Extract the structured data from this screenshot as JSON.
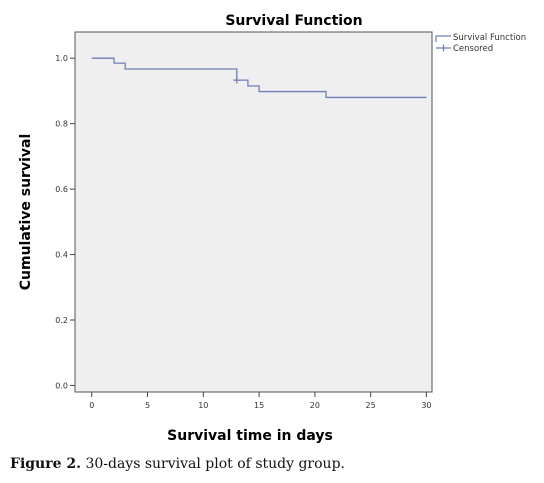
{
  "chart_data": {
    "type": "line",
    "title": "Survival Function",
    "xlabel": "Survival time in days",
    "ylabel": "Cumulative survival",
    "xlim": [
      -1.5,
      30.5
    ],
    "ylim": [
      -0.02,
      1.08
    ],
    "x_ticks": [
      0,
      5,
      10,
      15,
      20,
      25,
      30
    ],
    "y_ticks": [
      0.0,
      0.2,
      0.4,
      0.6,
      0.8,
      1.0
    ],
    "grid": false,
    "legend_position": "top-right-outside",
    "colors": {
      "line": "#6f7fb5",
      "plot_bg": "#efefef",
      "axis": "#444444"
    },
    "series": [
      {
        "name": "Survival Function",
        "step": true,
        "points": [
          [
            0,
            1.0
          ],
          [
            2,
            0.985
          ],
          [
            3,
            0.967
          ],
          [
            13,
            0.933
          ],
          [
            14,
            0.915
          ],
          [
            15,
            0.898
          ],
          [
            21,
            0.88
          ],
          [
            30,
            0.88
          ]
        ]
      },
      {
        "name": "Censored",
        "marker": "plus",
        "points": [
          [
            13,
            0.933
          ]
        ]
      }
    ]
  },
  "caption": {
    "label": "Figure 2.",
    "text": " 30-days survival plot of study group."
  }
}
